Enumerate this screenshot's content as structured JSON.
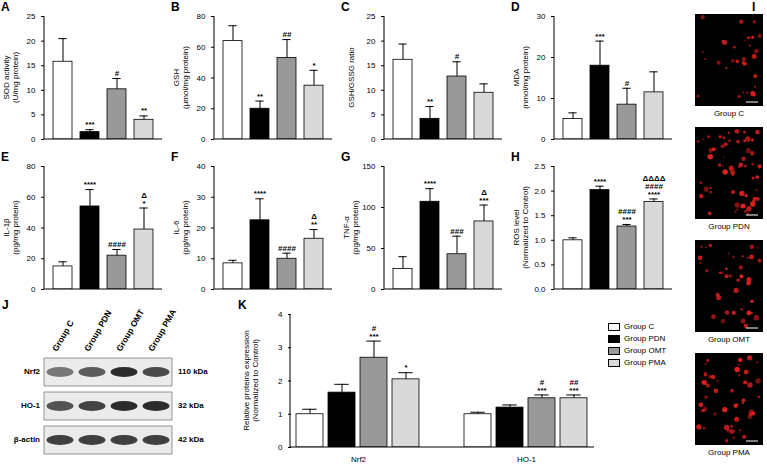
{
  "chart_data": [
    {
      "panel": "A",
      "type": "bar",
      "ylabel": [
        "SOD activity",
        "(U/mg protein)"
      ],
      "categories": [
        null,
        null,
        null,
        null
      ],
      "values": [
        15.8,
        1.5,
        10.2,
        4.0
      ],
      "errors": [
        4.7,
        0.5,
        2.2,
        0.8
      ],
      "annotations": [
        null,
        "***",
        "#",
        "**"
      ],
      "colors": [
        "#ffffff",
        "#000000",
        "#999999",
        "#d9d9d9"
      ],
      "ylim": [
        0,
        25
      ],
      "yticks": [
        0,
        5,
        10,
        15,
        20,
        25
      ],
      "tick_labels": "y"
    },
    {
      "panel": "B",
      "type": "bar",
      "ylabel": [
        "GSH",
        "(μmol/mg protein)"
      ],
      "categories": [
        null,
        null,
        null,
        null
      ],
      "values": [
        64,
        20,
        53,
        35
      ],
      "errors": [
        10,
        5,
        12,
        10
      ],
      "annotations": [
        null,
        "**",
        "##",
        "*"
      ],
      "colors": [
        "#ffffff",
        "#000000",
        "#999999",
        "#d9d9d9"
      ],
      "ylim": [
        0,
        80
      ],
      "yticks": [
        0,
        20,
        40,
        60,
        80
      ],
      "tick_labels": "y"
    },
    {
      "panel": "C",
      "type": "bar",
      "ylabel": [
        "GSH/GSSG ratio"
      ],
      "categories": [
        null,
        null,
        null,
        null
      ],
      "values": [
        16.2,
        4.2,
        12.8,
        9.5
      ],
      "errors": [
        3.2,
        2.5,
        3.0,
        1.8
      ],
      "annotations": [
        null,
        "**",
        "#",
        null
      ],
      "colors": [
        "#ffffff",
        "#000000",
        "#999999",
        "#d9d9d9"
      ],
      "ylim": [
        0,
        25
      ],
      "yticks": [
        0,
        5,
        10,
        15,
        20,
        25
      ],
      "tick_labels": "y"
    },
    {
      "panel": "D",
      "type": "bar",
      "ylabel": [
        "MDA",
        "(nmol/mg protein)"
      ],
      "categories": [
        null,
        null,
        null,
        null
      ],
      "values": [
        5,
        18,
        8.5,
        11.5
      ],
      "errors": [
        1.5,
        6,
        4,
        5
      ],
      "annotations": [
        null,
        "***",
        "#",
        null
      ],
      "colors": [
        "#ffffff",
        "#000000",
        "#999999",
        "#d9d9d9"
      ],
      "ylim": [
        0,
        30
      ],
      "yticks": [
        0,
        10,
        20,
        30
      ],
      "tick_labels": "y"
    },
    {
      "panel": "E",
      "type": "bar",
      "ylabel": [
        "IL-1β",
        "(pg/mg protein)"
      ],
      "categories": [
        null,
        null,
        null,
        null
      ],
      "values": [
        15,
        54,
        22,
        39
      ],
      "errors": [
        3,
        11,
        4,
        14
      ],
      "annotations": [
        null,
        "****",
        "####",
        [
          "Δ",
          "*"
        ]
      ],
      "colors": [
        "#ffffff",
        "#000000",
        "#999999",
        "#d9d9d9"
      ],
      "ylim": [
        0,
        80
      ],
      "yticks": [
        0,
        20,
        40,
        60,
        80
      ],
      "tick_labels": "y"
    },
    {
      "panel": "F",
      "type": "bar",
      "ylabel": [
        "IL-6",
        "(pg/mg protein)"
      ],
      "categories": [
        null,
        null,
        null,
        null
      ],
      "values": [
        8.5,
        22.5,
        10,
        16.5
      ],
      "errors": [
        1,
        7,
        1.8,
        3
      ],
      "annotations": [
        null,
        "****",
        "####",
        [
          "Δ",
          "**"
        ]
      ],
      "colors": [
        "#ffffff",
        "#000000",
        "#999999",
        "#d9d9d9"
      ],
      "ylim": [
        0,
        40
      ],
      "yticks": [
        0,
        10,
        20,
        30,
        40
      ],
      "tick_labels": "y"
    },
    {
      "panel": "G",
      "type": "bar",
      "ylabel": [
        "TNF-α",
        "(pg/mg protein)"
      ],
      "categories": [
        null,
        null,
        null,
        null
      ],
      "values": [
        25,
        107,
        43,
        83
      ],
      "errors": [
        15,
        16,
        22,
        20
      ],
      "annotations": [
        null,
        "****",
        "###",
        [
          "Δ",
          "***"
        ]
      ],
      "colors": [
        "#ffffff",
        "#000000",
        "#999999",
        "#d9d9d9"
      ],
      "ylim": [
        0,
        150
      ],
      "yticks": [
        0,
        50,
        100,
        150
      ],
      "tick_labels": "y"
    },
    {
      "panel": "H",
      "type": "bar",
      "ylabel": [
        "ROS level",
        "(Normalized to Control)"
      ],
      "categories": [
        null,
        null,
        null,
        null
      ],
      "values": [
        1.0,
        2.02,
        1.28,
        1.78
      ],
      "errors": [
        0.05,
        0.08,
        0.04,
        0.06
      ],
      "annotations": [
        null,
        "****",
        [
          "####",
          "***"
        ],
        [
          "ΔΔΔΔ",
          "####",
          "****"
        ]
      ],
      "colors": [
        "#ffffff",
        "#000000",
        "#999999",
        "#d9d9d9"
      ],
      "ylim": [
        0,
        2.5
      ],
      "yticks": [
        {
          "value": 0,
          "label": "0.0"
        },
        0.5,
        {
          "value": 1,
          "label": "1.0"
        },
        1.5,
        {
          "value": 2,
          "label": "2.0"
        },
        2.5
      ],
      "tick_labels": "y"
    },
    {
      "panel": "K",
      "type": "bar",
      "ylabel": [
        "Relative proteins expression",
        "(Normalized to Control)"
      ],
      "categories": [
        "Nrf2",
        "HO-1"
      ],
      "series": [
        {
          "name": "Group C",
          "color": "#ffffff",
          "values": [
            1.0,
            1.0
          ],
          "errors": [
            0.15,
            0.06
          ],
          "annotations": [
            null,
            null
          ]
        },
        {
          "name": "Group PDN",
          "color": "#000000",
          "values": [
            1.65,
            1.2
          ],
          "errors": [
            0.25,
            0.08
          ],
          "annotations": [
            null,
            null
          ]
        },
        {
          "name": "Group OMT",
          "color": "#999999",
          "values": [
            2.7,
            1.48
          ],
          "errors": [
            0.5,
            0.1
          ],
          "annotations": [
            [
              "#",
              "***"
            ],
            [
              "#",
              "***"
            ]
          ]
        },
        {
          "name": "Group PMA",
          "color": "#d9d9d9",
          "values": [
            2.05,
            1.48
          ],
          "errors": [
            0.2,
            0.1
          ],
          "annotations": [
            "*",
            [
              "##",
              "***"
            ]
          ]
        }
      ],
      "ylim": [
        0,
        4
      ],
      "yticks": [
        0,
        1,
        2,
        3,
        4
      ],
      "legend": "right"
    }
  ],
  "western_blot": {
    "panel": "J",
    "lanes": [
      "Group C",
      "Group PDN",
      "Group OMT",
      "Group PMA"
    ],
    "rows": [
      {
        "protein": "Nrf2",
        "size": "110 kDa"
      },
      {
        "protein": "HO-1",
        "size": "32 kDa"
      },
      {
        "protein": "β-actin",
        "size": "42 kDa"
      }
    ]
  },
  "images": {
    "panel": "I",
    "labels": [
      "Group C",
      "Group PDN",
      "Group OMT",
      "Group PMA"
    ]
  }
}
